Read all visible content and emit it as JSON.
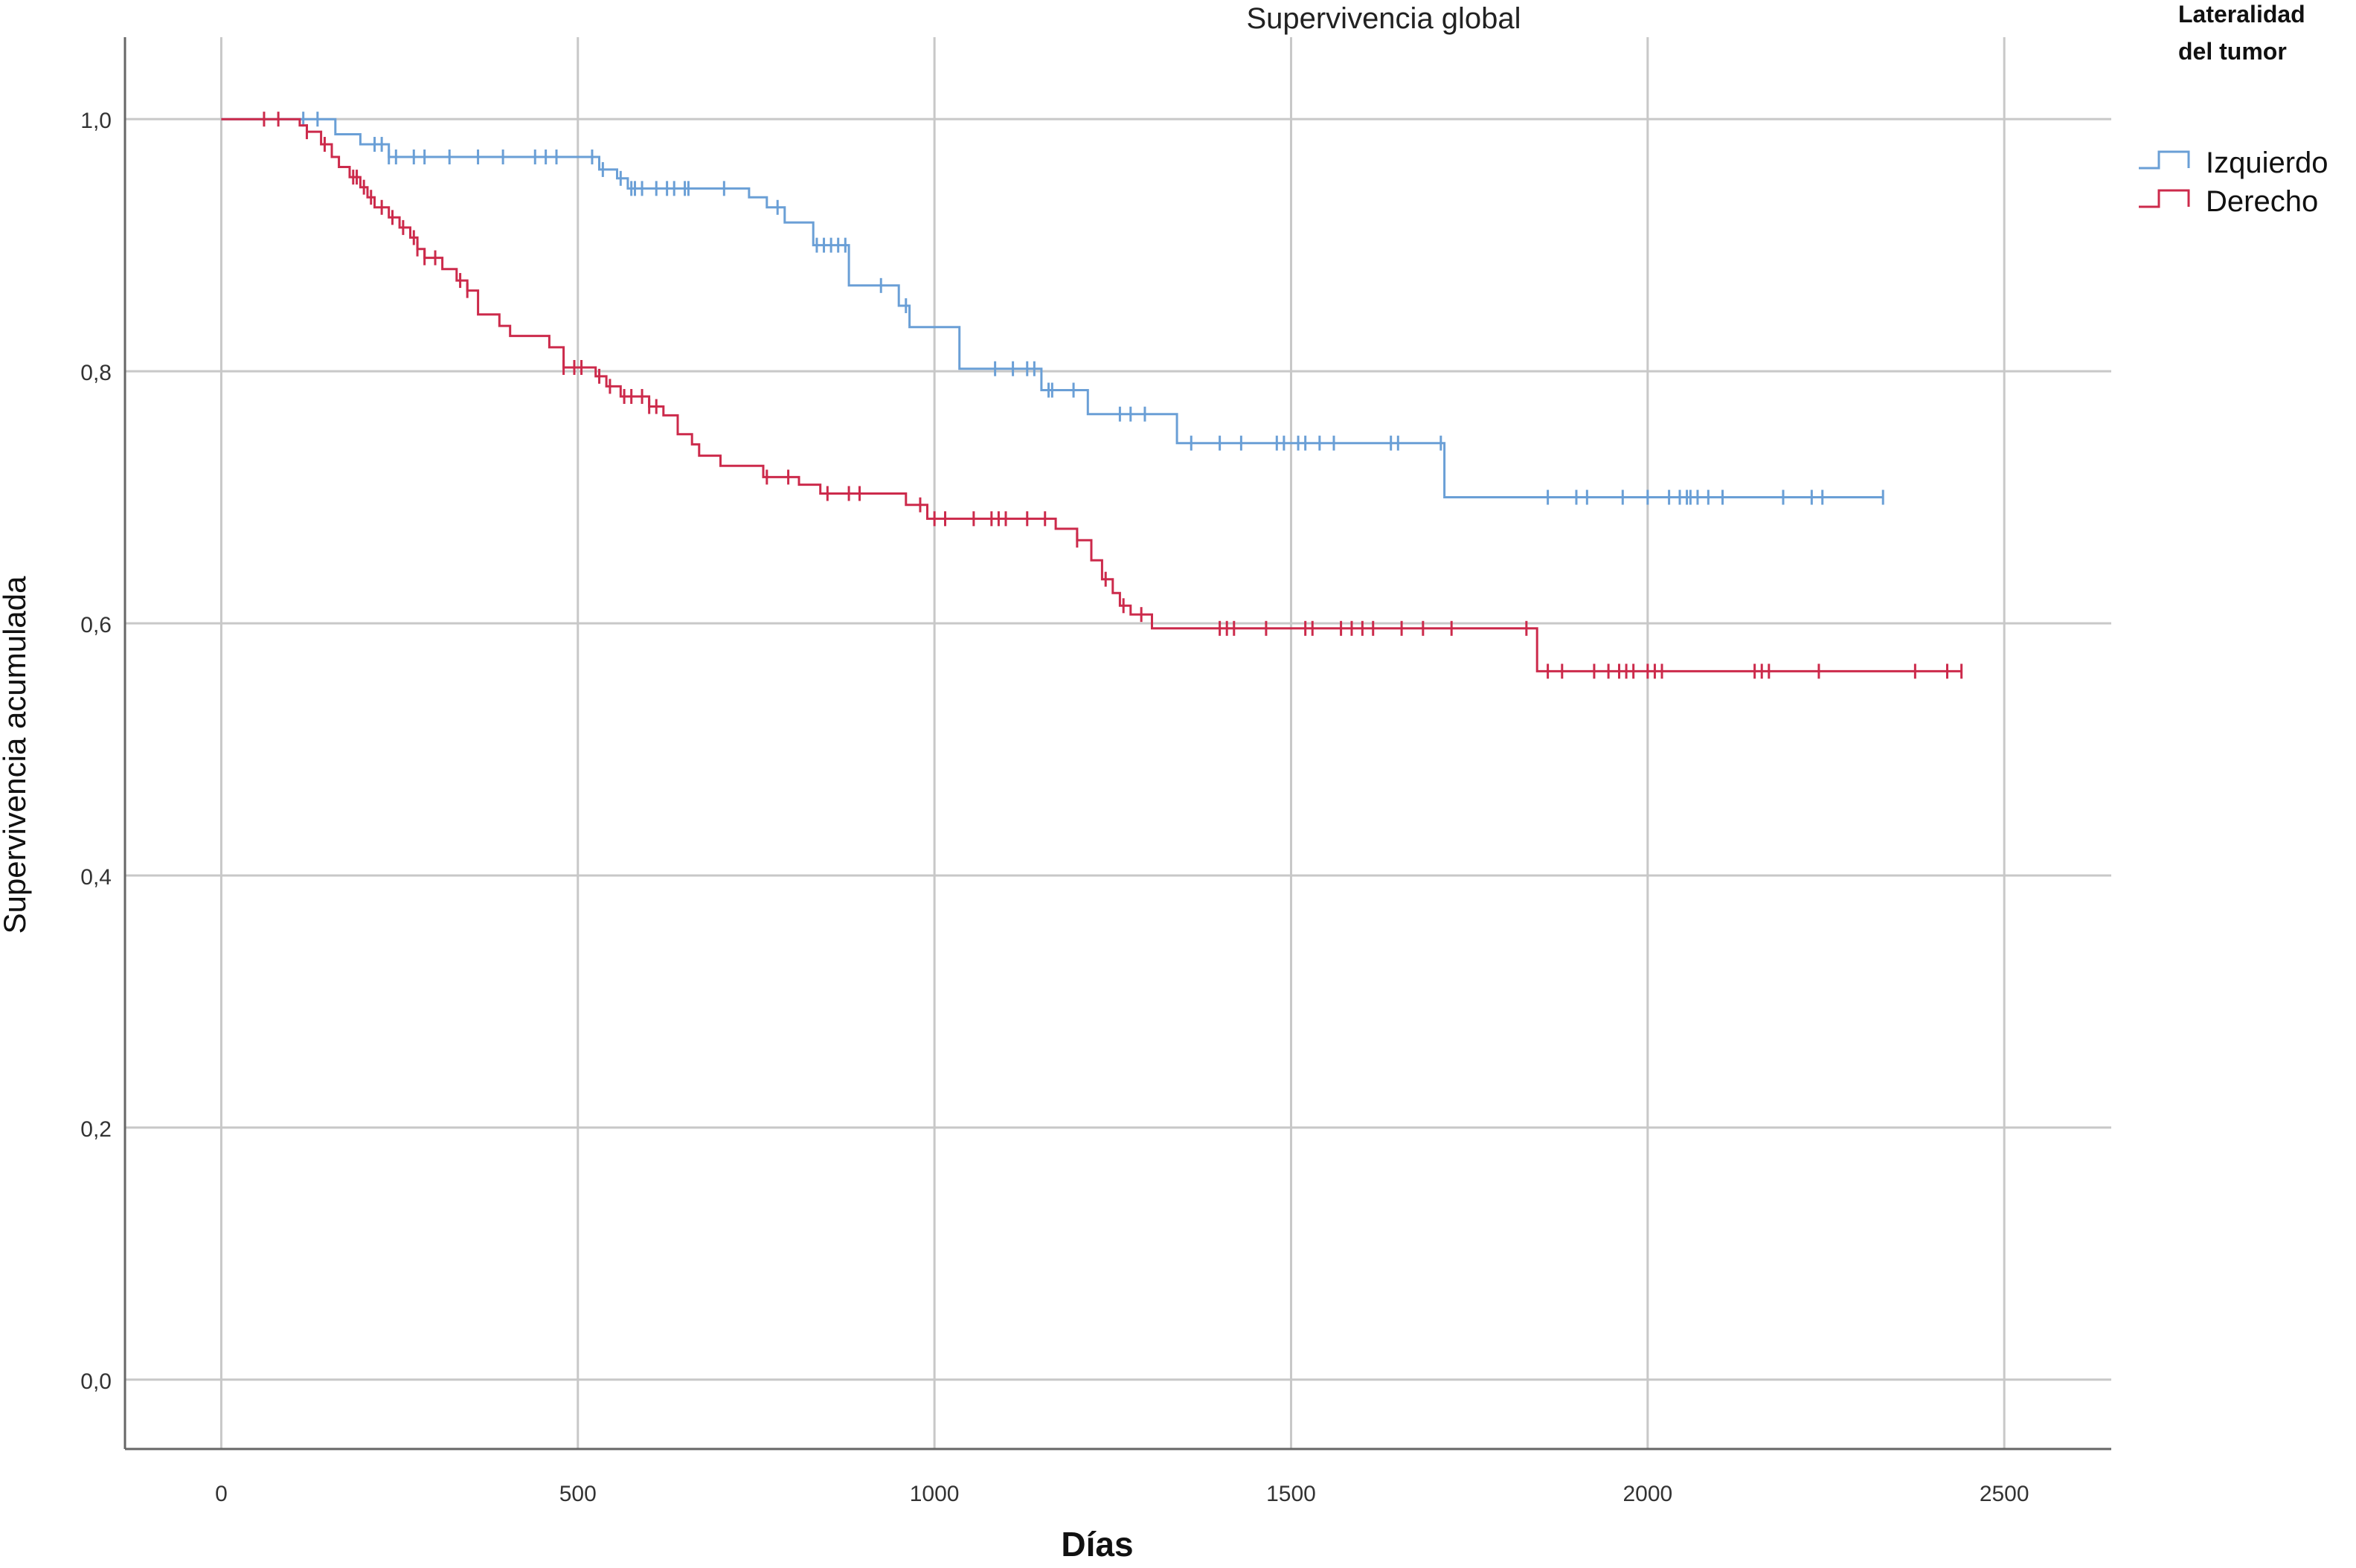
{
  "chart_data": {
    "type": "line",
    "title": "Supervivencia global",
    "xlabel": "Días",
    "ylabel": "Supervivencia acumulada",
    "xlim": [
      -135,
      2650
    ],
    "ylim": [
      -0.055,
      1.065
    ],
    "x_ticks": [
      0,
      500,
      1000,
      1500,
      2000,
      2500
    ],
    "x_tick_labels": [
      "0",
      "500",
      "1000",
      "1500",
      "2000",
      "2500"
    ],
    "y_ticks": [
      0.0,
      0.2,
      0.4,
      0.6,
      0.8,
      1.0
    ],
    "y_tick_labels": [
      "0,0",
      "0,2",
      "0,4",
      "0,6",
      "0,8",
      "1,0"
    ],
    "grid": true,
    "legend": {
      "title_line1": "Lateralidad",
      "title_line2": "del tumor",
      "placement": "right"
    },
    "series": [
      {
        "name": "Izquierdo",
        "color": "#6a9fd6",
        "steps": [
          [
            0,
            1.0
          ],
          [
            160,
            0.988
          ],
          [
            195,
            0.98
          ],
          [
            235,
            0.97
          ],
          [
            530,
            0.96
          ],
          [
            555,
            0.953
          ],
          [
            570,
            0.945
          ],
          [
            740,
            0.938
          ],
          [
            765,
            0.93
          ],
          [
            790,
            0.918
          ],
          [
            830,
            0.9
          ],
          [
            880,
            0.868
          ],
          [
            950,
            0.852
          ],
          [
            965,
            0.835
          ],
          [
            1035,
            0.802
          ],
          [
            1150,
            0.785
          ],
          [
            1215,
            0.766
          ],
          [
            1340,
            0.743
          ],
          [
            1715,
            0.7
          ],
          [
            2330,
            0.7
          ]
        ],
        "censor_x": [
          115,
          135,
          215,
          225,
          235,
          245,
          270,
          285,
          320,
          360,
          395,
          440,
          455,
          470,
          520,
          535,
          560,
          575,
          580,
          590,
          610,
          625,
          635,
          650,
          655,
          705,
          780,
          835,
          845,
          855,
          865,
          875,
          925,
          960,
          1085,
          1110,
          1130,
          1140,
          1160,
          1165,
          1195,
          1260,
          1275,
          1295,
          1360,
          1400,
          1430,
          1480,
          1490,
          1510,
          1520,
          1540,
          1560,
          1640,
          1650,
          1710,
          1860,
          1900,
          1915,
          1965,
          2000,
          2030,
          2045,
          2055,
          2060,
          2070,
          2085,
          2105,
          2190,
          2230,
          2245,
          2330
        ]
      },
      {
        "name": "Derecho",
        "color": "#cc2a4b",
        "steps": [
          [
            0,
            1.0
          ],
          [
            110,
            0.995
          ],
          [
            120,
            0.99
          ],
          [
            140,
            0.98
          ],
          [
            155,
            0.97
          ],
          [
            165,
            0.962
          ],
          [
            180,
            0.954
          ],
          [
            195,
            0.946
          ],
          [
            205,
            0.938
          ],
          [
            215,
            0.93
          ],
          [
            235,
            0.922
          ],
          [
            250,
            0.914
          ],
          [
            265,
            0.906
          ],
          [
            275,
            0.897
          ],
          [
            285,
            0.89
          ],
          [
            310,
            0.881
          ],
          [
            330,
            0.872
          ],
          [
            345,
            0.864
          ],
          [
            360,
            0.845
          ],
          [
            390,
            0.836
          ],
          [
            405,
            0.828
          ],
          [
            460,
            0.819
          ],
          [
            480,
            0.803
          ],
          [
            525,
            0.796
          ],
          [
            540,
            0.788
          ],
          [
            560,
            0.78
          ],
          [
            600,
            0.772
          ],
          [
            620,
            0.765
          ],
          [
            640,
            0.75
          ],
          [
            660,
            0.742
          ],
          [
            670,
            0.733
          ],
          [
            700,
            0.725
          ],
          [
            760,
            0.716
          ],
          [
            810,
            0.71
          ],
          [
            840,
            0.703
          ],
          [
            960,
            0.694
          ],
          [
            990,
            0.683
          ],
          [
            1170,
            0.675
          ],
          [
            1200,
            0.666
          ],
          [
            1220,
            0.65
          ],
          [
            1235,
            0.635
          ],
          [
            1250,
            0.624
          ],
          [
            1260,
            0.614
          ],
          [
            1275,
            0.607
          ],
          [
            1305,
            0.596
          ],
          [
            1845,
            0.562
          ],
          [
            2440,
            0.562
          ]
        ],
        "censor_x": [
          60,
          80,
          120,
          145,
          185,
          190,
          200,
          210,
          225,
          240,
          255,
          270,
          275,
          285,
          300,
          335,
          345,
          480,
          495,
          505,
          530,
          545,
          565,
          575,
          590,
          600,
          610,
          765,
          795,
          850,
          880,
          895,
          980,
          1000,
          1015,
          1055,
          1080,
          1090,
          1100,
          1130,
          1155,
          1200,
          1240,
          1265,
          1290,
          1400,
          1410,
          1420,
          1465,
          1520,
          1530,
          1570,
          1585,
          1600,
          1615,
          1655,
          1685,
          1725,
          1830,
          1860,
          1880,
          1925,
          1945,
          1960,
          1970,
          1980,
          2000,
          2010,
          2020,
          2150,
          2160,
          2170,
          2240,
          2375,
          2420,
          2440
        ]
      }
    ]
  }
}
